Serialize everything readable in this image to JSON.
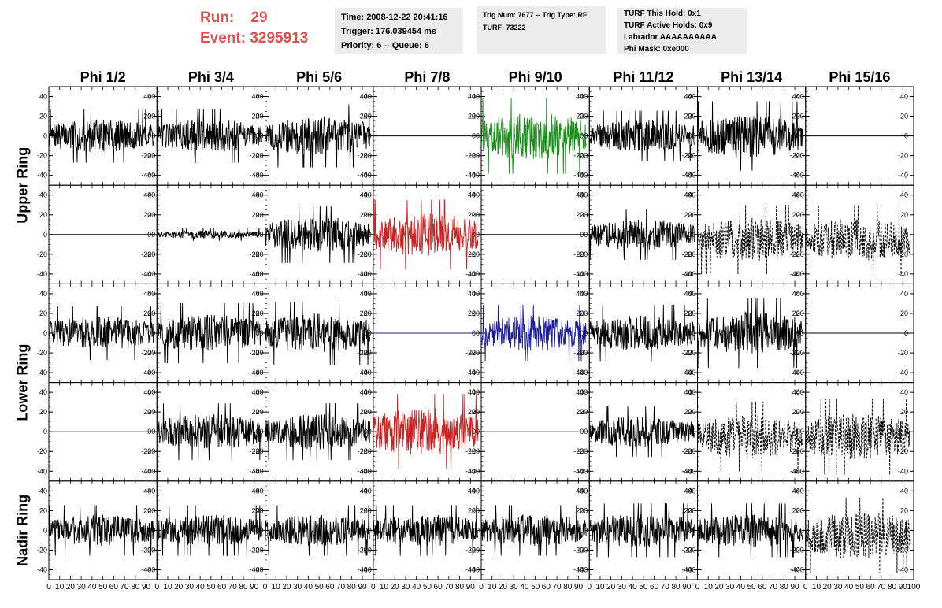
{
  "header": {
    "run_label": "Run:",
    "run_value": "29",
    "event_label": "Event:",
    "event_value": "3295913",
    "event_info": [
      "Time: 2008-12-22 20:41:16",
      "Trigger: 176.039454 ms",
      "Priority: 6 -- Queue: 6"
    ],
    "trigger_info": [
      "Trig Num: 7677 -- Trig Type: RF",
      "",
      "TURF: 73222"
    ],
    "turf_info": [
      "TURF This Hold: 0x1",
      "TURF Active Holds: 0x9",
      "Labrador AAAAAAAAAA",
      "Phi Mask: 0xe000"
    ]
  },
  "colors": {
    "default": "#000000",
    "green": "#1a8f1a",
    "red": "#cc2222",
    "blue": "#1a1a9e"
  },
  "chart_data": {
    "type": "line",
    "title": "",
    "columns": [
      "Phi 1/2",
      "Phi 3/4",
      "Phi 5/6",
      "Phi 7/8",
      "Phi 9/10",
      "Phi 11/12",
      "Phi 13/14",
      "Phi 15/16"
    ],
    "rows": [
      "Upper Ring",
      "Lower Ring",
      "Nadir Ring"
    ],
    "xlim": [
      0,
      100
    ],
    "ylim": [
      -50,
      50
    ],
    "xticks": [
      "0",
      "10",
      "20",
      "30",
      "40",
      "50",
      "60",
      "70",
      "80",
      "90",
      "100"
    ],
    "yticks": [
      "40",
      "20",
      "0",
      "-20",
      "-40"
    ],
    "grid": false,
    "waveforms": [
      [
        {
          "amp": 17,
          "color": "default",
          "style": "solid"
        },
        {
          "amp": 17,
          "color": "default",
          "style": "solid"
        },
        {
          "amp": 20,
          "color": "default",
          "style": "solid"
        },
        {
          "amp": 0,
          "color": "default",
          "style": "solid"
        },
        {
          "amp": 24,
          "color": "green",
          "style": "solid"
        },
        {
          "amp": 16,
          "color": "default",
          "style": "solid"
        },
        {
          "amp": 22,
          "color": "default",
          "style": "solid"
        },
        {
          "amp": 0,
          "color": "default",
          "style": "solid"
        }
      ],
      [
        {
          "amp": 0,
          "color": "default",
          "style": "solid"
        },
        {
          "amp": 4,
          "color": "default",
          "style": "solid"
        },
        {
          "amp": 18,
          "color": "default",
          "style": "solid"
        },
        {
          "amp": 22,
          "color": "red",
          "style": "solid"
        },
        {
          "amp": 0,
          "color": "default",
          "style": "solid"
        },
        {
          "amp": 16,
          "color": "default",
          "style": "solid"
        },
        {
          "amp": 22,
          "color": "default",
          "style": "dashed",
          "offset": -5
        },
        {
          "amp": 22,
          "color": "default",
          "style": "dashed",
          "offset": -5
        }
      ],
      [
        {
          "amp": 17,
          "color": "default",
          "style": "solid"
        },
        {
          "amp": 19,
          "color": "default",
          "style": "solid"
        },
        {
          "amp": 20,
          "color": "default",
          "style": "solid"
        },
        {
          "amp": 0,
          "color": "blue",
          "style": "solid"
        },
        {
          "amp": 18,
          "color": "blue",
          "style": "solid"
        },
        {
          "amp": 18,
          "color": "default",
          "style": "solid"
        },
        {
          "amp": 22,
          "color": "default",
          "style": "solid"
        },
        {
          "amp": 0,
          "color": "default",
          "style": "solid"
        }
      ],
      [
        {
          "amp": 0,
          "color": "default",
          "style": "solid"
        },
        {
          "amp": 18,
          "color": "default",
          "style": "solid"
        },
        {
          "amp": 18,
          "color": "default",
          "style": "solid"
        },
        {
          "amp": 24,
          "color": "red",
          "style": "solid"
        },
        {
          "amp": 0,
          "color": "default",
          "style": "solid"
        },
        {
          "amp": 16,
          "color": "default",
          "style": "solid"
        },
        {
          "amp": 22,
          "color": "default",
          "style": "dashed",
          "offset": -5
        },
        {
          "amp": 24,
          "color": "default",
          "style": "dashed",
          "offset": -5
        }
      ],
      [
        {
          "amp": 16,
          "color": "default",
          "style": "solid"
        },
        {
          "amp": 16,
          "color": "default",
          "style": "solid"
        },
        {
          "amp": 16,
          "color": "default",
          "style": "solid"
        },
        {
          "amp": 16,
          "color": "default",
          "style": "solid"
        },
        {
          "amp": 16,
          "color": "default",
          "style": "solid"
        },
        {
          "amp": 17,
          "color": "default",
          "style": "solid"
        },
        {
          "amp": 17,
          "color": "default",
          "style": "solid"
        },
        {
          "amp": 24,
          "color": "default",
          "style": "dashed",
          "offset": -5
        }
      ]
    ]
  }
}
